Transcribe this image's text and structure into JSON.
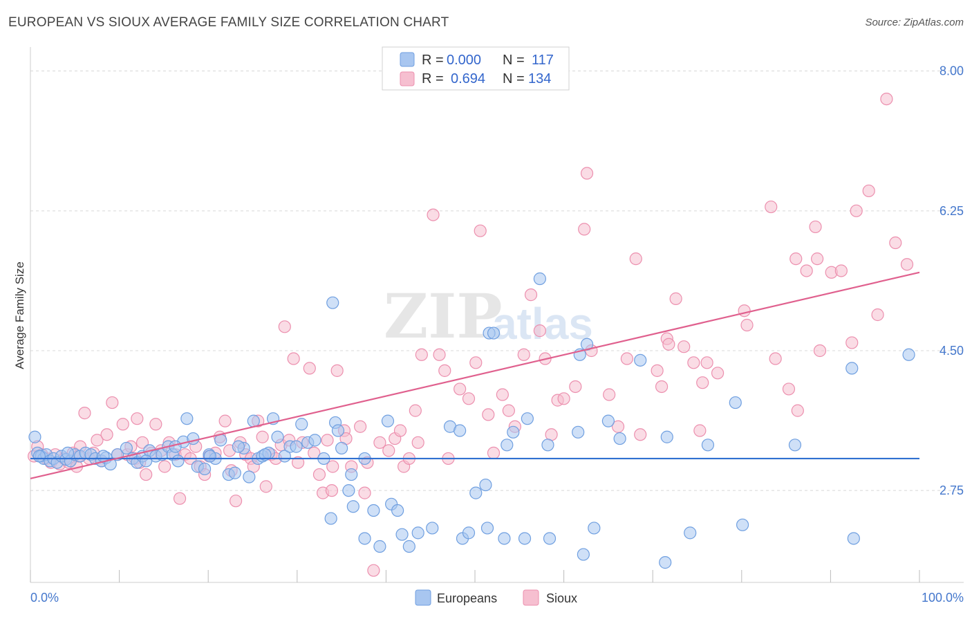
{
  "header": {
    "title": "EUROPEAN VS SIOUX AVERAGE FAMILY SIZE CORRELATION CHART",
    "source": "Source: ZipAtlas.com"
  },
  "watermark": {
    "zip": "ZIP",
    "atlas": "atlas"
  },
  "legend": {
    "rows": [
      {
        "r_label": "R =",
        "r_value": "0.000",
        "n_label": "N =",
        "n_value": "117",
        "color": "#6fa0e6"
      },
      {
        "r_label": "R =",
        "r_value": "0.694",
        "n_label": "N =",
        "n_value": "134",
        "color": "#f08fb0"
      }
    ]
  },
  "bottom_legend": {
    "items": [
      "Europeans",
      "Sioux"
    ]
  },
  "colors": {
    "europeans_fill": "#a8c6f0",
    "europeans_stroke": "#6f9fe0",
    "europeans_line": "#2f6fd0",
    "sioux_fill": "#f6bfd0",
    "sioux_stroke": "#ec8fae",
    "sioux_line": "#e0608e",
    "grid": "#d8d8d8",
    "tick_text": "#4477cc"
  },
  "chart_data": {
    "type": "scatter",
    "title": "EUROPEAN VS SIOUX AVERAGE FAMILY SIZE CORRELATION CHART",
    "xlabel": "",
    "ylabel": "Average Family Size",
    "xlim": [
      0,
      100
    ],
    "ylim": [
      1.6,
      8.3
    ],
    "x_tick_labels": [
      "0.0%",
      "100.0%"
    ],
    "y_ticks": [
      2.75,
      4.5,
      6.25,
      8.0
    ],
    "y_tick_labels": [
      "2.75",
      "4.50",
      "6.25",
      "8.00"
    ],
    "grid": true,
    "legend_position": "top-center",
    "series": [
      {
        "name": "Europeans",
        "r": 0.0,
        "n": 117,
        "trend": {
          "x": [
            0,
            100
          ],
          "y": [
            3.15,
            3.15
          ]
        },
        "points": [
          [
            0.5,
            3.42
          ],
          [
            0.8,
            3.22
          ],
          [
            1.2,
            3.18
          ],
          [
            1.5,
            3.15
          ],
          [
            1.8,
            3.2
          ],
          [
            2.2,
            3.12
          ],
          [
            2.6,
            3.15
          ],
          [
            3.0,
            3.1
          ],
          [
            3.5,
            3.18
          ],
          [
            4.0,
            3.14
          ],
          [
            4.5,
            3.12
          ],
          [
            5.0,
            3.2
          ],
          [
            5.6,
            3.18
          ],
          [
            6.2,
            3.22
          ],
          [
            6.8,
            3.2
          ],
          [
            7.3,
            3.15
          ],
          [
            8.0,
            3.12
          ],
          [
            8.5,
            3.16
          ],
          [
            9.0,
            3.08
          ],
          [
            9.8,
            3.2
          ],
          [
            10.8,
            3.28
          ],
          [
            11.5,
            3.15
          ],
          [
            12.0,
            3.1
          ],
          [
            12.6,
            3.18
          ],
          [
            13.4,
            3.25
          ],
          [
            14.1,
            3.18
          ],
          [
            14.8,
            3.2
          ],
          [
            15.5,
            3.3
          ],
          [
            16.0,
            3.2
          ],
          [
            16.6,
            3.12
          ],
          [
            17.2,
            3.36
          ],
          [
            17.6,
            3.65
          ],
          [
            18.3,
            3.4
          ],
          [
            18.8,
            3.05
          ],
          [
            19.6,
            3.02
          ],
          [
            20.1,
            3.2
          ],
          [
            20.8,
            3.15
          ],
          [
            21.4,
            3.38
          ],
          [
            22.3,
            2.95
          ],
          [
            23.0,
            2.97
          ],
          [
            24.0,
            3.28
          ],
          [
            24.6,
            2.92
          ],
          [
            25.1,
            3.62
          ],
          [
            25.6,
            3.15
          ],
          [
            26.1,
            3.18
          ],
          [
            26.8,
            3.22
          ],
          [
            27.3,
            3.65
          ],
          [
            27.8,
            3.42
          ],
          [
            28.6,
            3.18
          ],
          [
            29.2,
            3.3
          ],
          [
            29.9,
            3.3
          ],
          [
            30.5,
            3.58
          ],
          [
            31.2,
            3.35
          ],
          [
            32.0,
            3.38
          ],
          [
            33.0,
            3.15
          ],
          [
            34.3,
            3.6
          ],
          [
            34.6,
            3.5
          ],
          [
            35.0,
            3.28
          ],
          [
            34.0,
            5.1
          ],
          [
            36.1,
            2.95
          ],
          [
            35.8,
            2.75
          ],
          [
            33.8,
            2.4
          ],
          [
            36.3,
            2.55
          ],
          [
            37.6,
            3.15
          ],
          [
            37.6,
            2.15
          ],
          [
            38.6,
            2.5
          ],
          [
            39.3,
            2.05
          ],
          [
            40.2,
            3.62
          ],
          [
            40.6,
            2.58
          ],
          [
            41.3,
            2.5
          ],
          [
            41.8,
            2.2
          ],
          [
            42.6,
            2.05
          ],
          [
            43.6,
            2.22
          ],
          [
            45.2,
            2.28
          ],
          [
            47.2,
            3.55
          ],
          [
            48.3,
            3.5
          ],
          [
            48.6,
            2.15
          ],
          [
            49.3,
            2.22
          ],
          [
            50.1,
            2.72
          ],
          [
            51.2,
            2.82
          ],
          [
            51.6,
            4.72
          ],
          [
            52.1,
            4.72
          ],
          [
            51.4,
            2.28
          ],
          [
            53.3,
            2.15
          ],
          [
            53.6,
            3.32
          ],
          [
            54.3,
            3.48
          ],
          [
            55.6,
            2.15
          ],
          [
            55.9,
            3.65
          ],
          [
            57.3,
            5.4
          ],
          [
            58.2,
            3.32
          ],
          [
            58.4,
            2.15
          ],
          [
            61.8,
            4.45
          ],
          [
            61.6,
            3.48
          ],
          [
            62.2,
            1.95
          ],
          [
            62.6,
            4.58
          ],
          [
            63.4,
            2.28
          ],
          [
            65.0,
            3.62
          ],
          [
            66.3,
            3.4
          ],
          [
            68.6,
            4.38
          ],
          [
            71.6,
            3.42
          ],
          [
            71.4,
            1.85
          ],
          [
            74.2,
            2.22
          ],
          [
            76.2,
            3.32
          ],
          [
            79.3,
            3.85
          ],
          [
            80.1,
            2.32
          ],
          [
            86.0,
            3.32
          ],
          [
            92.4,
            4.28
          ],
          [
            92.6,
            2.15
          ],
          [
            98.8,
            4.45
          ],
          [
            1.0,
            3.18
          ],
          [
            4.2,
            3.22
          ],
          [
            8.2,
            3.18
          ],
          [
            13.0,
            3.12
          ],
          [
            16.3,
            3.3
          ],
          [
            20.2,
            3.18
          ],
          [
            23.4,
            3.3
          ],
          [
            26.4,
            3.2
          ]
        ]
      },
      {
        "name": "Sioux",
        "r": 0.694,
        "n": 134,
        "trend": {
          "x": [
            0,
            100
          ],
          "y": [
            2.9,
            5.48
          ]
        },
        "points": [
          [
            0.4,
            3.18
          ],
          [
            0.8,
            3.3
          ],
          [
            1.3,
            3.2
          ],
          [
            1.8,
            3.15
          ],
          [
            2.3,
            3.1
          ],
          [
            2.8,
            3.2
          ],
          [
            3.3,
            3.08
          ],
          [
            3.8,
            3.15
          ],
          [
            4.3,
            3.1
          ],
          [
            4.8,
            3.22
          ],
          [
            5.2,
            3.05
          ],
          [
            5.6,
            3.3
          ],
          [
            6.1,
            3.72
          ],
          [
            6.6,
            3.15
          ],
          [
            7.1,
            3.22
          ],
          [
            7.5,
            3.38
          ],
          [
            8.0,
            3.12
          ],
          [
            8.6,
            3.45
          ],
          [
            9.2,
            3.85
          ],
          [
            9.8,
            3.2
          ],
          [
            10.4,
            3.58
          ],
          [
            10.9,
            3.2
          ],
          [
            11.3,
            3.3
          ],
          [
            11.8,
            3.15
          ],
          [
            12.3,
            3.1
          ],
          [
            12.6,
            3.35
          ],
          [
            13.0,
            2.95
          ],
          [
            13.6,
            3.22
          ],
          [
            14.1,
            3.58
          ],
          [
            14.7,
            3.25
          ],
          [
            15.1,
            3.05
          ],
          [
            15.6,
            3.35
          ],
          [
            16.3,
            3.2
          ],
          [
            16.8,
            2.65
          ],
          [
            17.4,
            3.2
          ],
          [
            18.0,
            3.15
          ],
          [
            18.6,
            3.3
          ],
          [
            19.1,
            3.05
          ],
          [
            19.6,
            2.95
          ],
          [
            20.1,
            3.18
          ],
          [
            20.8,
            3.22
          ],
          [
            21.3,
            3.42
          ],
          [
            21.9,
            3.62
          ],
          [
            22.4,
            3.25
          ],
          [
            23.1,
            2.62
          ],
          [
            23.6,
            3.35
          ],
          [
            24.2,
            3.2
          ],
          [
            24.8,
            3.15
          ],
          [
            25.1,
            3.05
          ],
          [
            25.6,
            3.62
          ],
          [
            26.1,
            3.42
          ],
          [
            26.5,
            2.8
          ],
          [
            27.1,
            3.2
          ],
          [
            27.6,
            3.15
          ],
          [
            28.2,
            3.32
          ],
          [
            28.6,
            4.8
          ],
          [
            29.1,
            3.38
          ],
          [
            29.6,
            4.4
          ],
          [
            30.1,
            3.1
          ],
          [
            30.6,
            3.35
          ],
          [
            31.4,
            4.28
          ],
          [
            31.9,
            3.22
          ],
          [
            32.5,
            2.95
          ],
          [
            32.9,
            2.72
          ],
          [
            33.4,
            3.38
          ],
          [
            33.9,
            2.75
          ],
          [
            34.0,
            3.05
          ],
          [
            34.5,
            4.25
          ],
          [
            35.3,
            3.5
          ],
          [
            35.5,
            3.4
          ],
          [
            36.1,
            3.05
          ],
          [
            37.1,
            3.55
          ],
          [
            37.6,
            2.72
          ],
          [
            37.9,
            3.1
          ],
          [
            38.6,
            1.75
          ],
          [
            39.3,
            3.35
          ],
          [
            40.3,
            3.25
          ],
          [
            41.0,
            3.4
          ],
          [
            41.6,
            3.5
          ],
          [
            42.0,
            3.05
          ],
          [
            42.6,
            3.15
          ],
          [
            43.3,
            3.75
          ],
          [
            44.0,
            4.45
          ],
          [
            45.3,
            6.2
          ],
          [
            46.0,
            4.45
          ],
          [
            46.6,
            4.25
          ],
          [
            47.0,
            3.15
          ],
          [
            48.3,
            4.02
          ],
          [
            49.3,
            3.9
          ],
          [
            50.1,
            4.35
          ],
          [
            50.6,
            6.0
          ],
          [
            51.5,
            3.7
          ],
          [
            52.1,
            3.22
          ],
          [
            53.1,
            3.95
          ],
          [
            53.8,
            3.75
          ],
          [
            54.5,
            3.55
          ],
          [
            55.5,
            4.45
          ],
          [
            56.3,
            5.2
          ],
          [
            57.3,
            4.75
          ],
          [
            57.9,
            4.4
          ],
          [
            58.6,
            3.45
          ],
          [
            59.3,
            3.88
          ],
          [
            60.0,
            3.9
          ],
          [
            61.3,
            4.05
          ],
          [
            62.6,
            6.72
          ],
          [
            63.1,
            4.5
          ],
          [
            65.1,
            3.95
          ],
          [
            66.1,
            3.55
          ],
          [
            67.1,
            4.4
          ],
          [
            68.1,
            5.65
          ],
          [
            68.6,
            3.45
          ],
          [
            70.5,
            4.25
          ],
          [
            71.0,
            4.05
          ],
          [
            71.6,
            4.65
          ],
          [
            71.8,
            4.58
          ],
          [
            72.6,
            5.15
          ],
          [
            73.5,
            4.55
          ],
          [
            74.6,
            4.35
          ],
          [
            75.3,
            3.5
          ],
          [
            75.6,
            4.1
          ],
          [
            76.1,
            4.35
          ],
          [
            77.3,
            4.22
          ],
          [
            80.3,
            5.0
          ],
          [
            80.6,
            4.82
          ],
          [
            83.3,
            6.3
          ],
          [
            83.8,
            4.4
          ],
          [
            85.3,
            4.02
          ],
          [
            86.1,
            5.65
          ],
          [
            87.3,
            5.5
          ],
          [
            88.3,
            6.05
          ],
          [
            88.5,
            5.65
          ],
          [
            88.8,
            4.5
          ],
          [
            90.1,
            5.48
          ],
          [
            91.2,
            5.5
          ],
          [
            92.4,
            4.6
          ],
          [
            92.9,
            6.25
          ],
          [
            94.3,
            6.5
          ],
          [
            95.3,
            4.95
          ],
          [
            96.3,
            7.65
          ],
          [
            97.3,
            5.85
          ],
          [
            98.6,
            5.58
          ],
          [
            62.3,
            6.02
          ],
          [
            22.6,
            3.0
          ],
          [
            43.6,
            3.35
          ],
          [
            5.4,
            3.18
          ],
          [
            12.0,
            3.65
          ],
          [
            86.3,
            3.75
          ]
        ]
      }
    ]
  }
}
